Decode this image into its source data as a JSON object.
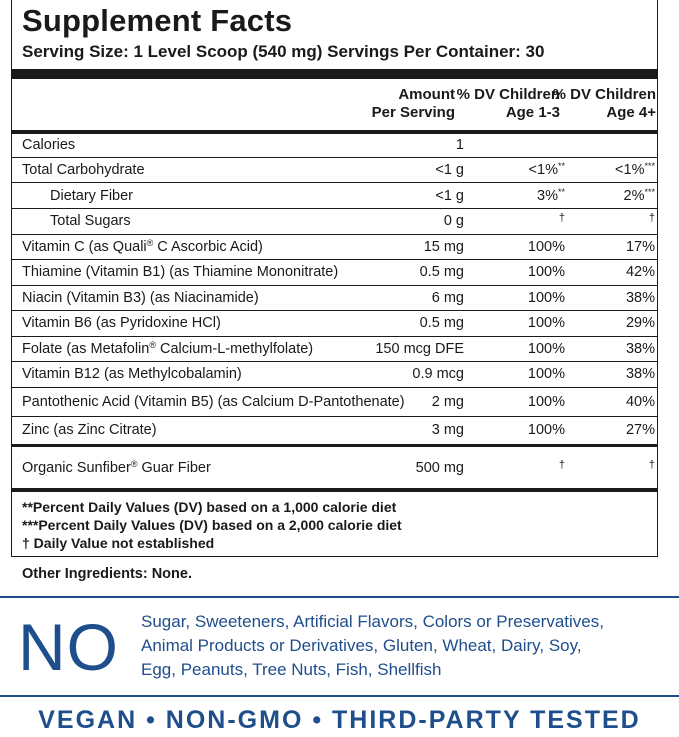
{
  "title": "Supplement Facts",
  "serving_line": "Serving Size: 1 Level Scoop (540 mg)  Servings Per Container: 30",
  "headers": {
    "amount": [
      "Amount",
      "Per Serving"
    ],
    "dv1": [
      "% DV Children",
      "Age 1-3"
    ],
    "dv2": [
      "% DV Children",
      "Age 4+"
    ]
  },
  "rows": [
    {
      "name": "Calories",
      "amount": "1",
      "dv1": "",
      "dv2": ""
    },
    {
      "name": "Total Carbohydrate",
      "amount": "<1 g",
      "dv1": "<1%**",
      "dv2": "<1%***"
    },
    {
      "name": "Dietary Fiber",
      "amount": "<1 g",
      "dv1": "3%**",
      "dv2": "2%***"
    },
    {
      "name": "Total Sugars",
      "amount": "0 g",
      "dv1": "†",
      "dv2": "†"
    },
    {
      "name": "Vitamin C (as Quali® C  Ascorbic Acid)",
      "amount": "15 mg",
      "dv1": "100%",
      "dv2": "17%"
    },
    {
      "name": "Thiamine (Vitamin B1) (as Thiamine Mononitrate)",
      "amount": "0.5 mg",
      "dv1": "100%",
      "dv2": "42%"
    },
    {
      "name": "Niacin (Vitamin B3) (as Niacinamide)",
      "amount": "6 mg",
      "dv1": "100%",
      "dv2": "38%"
    },
    {
      "name": "Vitamin B6 (as Pyridoxine HCl)",
      "amount": "0.5 mg",
      "dv1": "100%",
      "dv2": "29%"
    },
    {
      "name": "Folate (as Metafolin® Calcium-L-methylfolate)",
      "amount": "150 mcg DFE",
      "dv1": "100%",
      "dv2": "38%"
    },
    {
      "name": "Vitamin B12 (as Methylcobalamin)",
      "amount": "0.9 mcg",
      "dv1": "100%",
      "dv2": "38%"
    },
    {
      "name": "Pantothenic Acid (Vitamin B5) (as Calcium D-Pantothenate)",
      "amount": "2 mg",
      "dv1": "100%",
      "dv2": "40%"
    },
    {
      "name": "Zinc (as Zinc Citrate)",
      "amount": "3 mg",
      "dv1": "100%",
      "dv2": "27%"
    },
    {
      "name": "Organic Sunfiber® Guar Fiber",
      "amount": "500 mg",
      "dv1": "†",
      "dv2": "†"
    }
  ],
  "footnotes": [
    "**Percent Daily Values (DV) based on a 1,000 calorie diet",
    "***Percent Daily Values (DV) based on a 2,000 calorie diet",
    "† Daily Value not established"
  ],
  "other_ingredients": "Other Ingredients: None.",
  "no_section": {
    "big": "NO",
    "lines": [
      "Sugar, Sweeteners, Artificial Flavors, Colors or Preservatives,",
      "Animal Products or Derivatives, Gluten, Wheat, Dairy, Soy,",
      "Egg, Peanuts, Tree Nuts, Fish, Shellfish"
    ]
  },
  "tagline": "VEGAN • NON-GMO • THIRD-PARTY TESTED",
  "colors": {
    "text": "#1a1a1a",
    "accent_blue": "#1f4e8c"
  }
}
